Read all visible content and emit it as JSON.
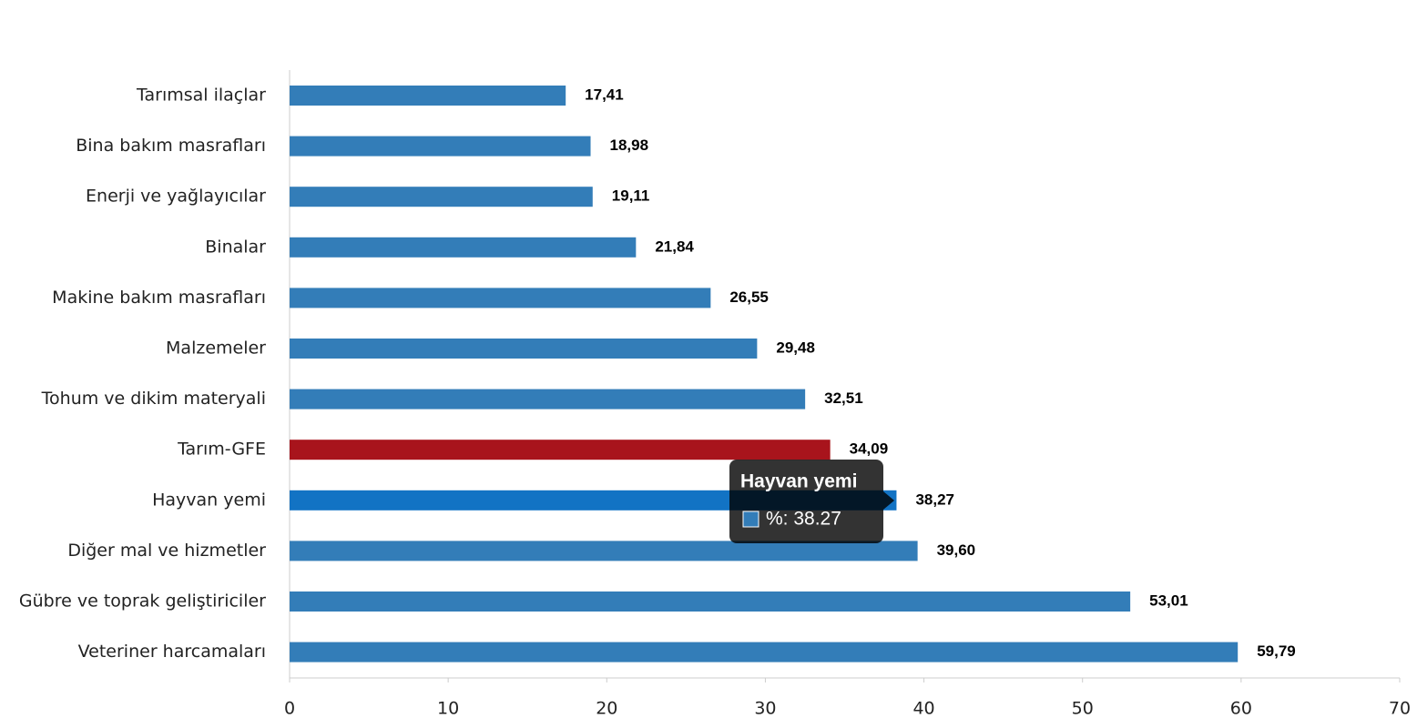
{
  "chart_data": {
    "type": "hbar",
    "categories": [
      "Tarımsal ilaçlar",
      "Bina bakım masrafları",
      "Enerji  ve yağlayıcılar",
      "Binalar",
      "Makine bakım masrafları",
      "Malzemeler",
      "Tohum ve dikim materyali",
      "Tarım-GFE",
      "Hayvan yemi",
      "Diğer mal ve hizmetler",
      "Gübre ve toprak geliştiriciler",
      "Veteriner harcamaları"
    ],
    "values": [
      17.41,
      18.98,
      19.11,
      21.84,
      26.55,
      29.48,
      32.51,
      34.09,
      38.27,
      39.6,
      53.01,
      59.79
    ],
    "value_labels": [
      "17,41",
      "18,98",
      "19,11",
      "21,84",
      "26,55",
      "29,48",
      "32,51",
      "34,09",
      "38,27",
      "39,60",
      "53,01",
      "59,79"
    ],
    "colors": [
      "#337db8",
      "#337db8",
      "#337db8",
      "#337db8",
      "#337db8",
      "#337db8",
      "#337db8",
      "#a8141c",
      "#1273c4",
      "#337db8",
      "#337db8",
      "#337db8"
    ],
    "xlim": [
      0,
      70
    ],
    "xticks": [
      0,
      10,
      20,
      30,
      40,
      50,
      60,
      70
    ],
    "tooltip": {
      "title": "Hayvan yemi",
      "text": "%: 38.27",
      "color": "#337db8"
    }
  }
}
